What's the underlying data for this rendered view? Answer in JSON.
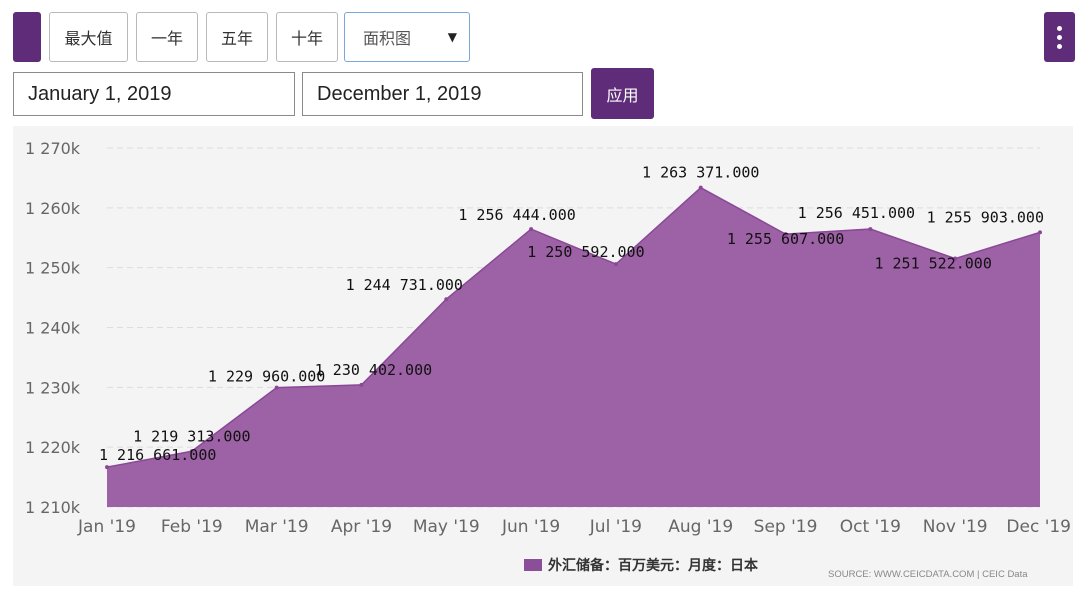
{
  "toolbar": {
    "range_buttons": [
      "最大值",
      "一年",
      "五年",
      "十年"
    ],
    "chart_type_select": "面积图",
    "date_from": "January 1, 2019",
    "date_to": "December 1, 2019",
    "apply_label": "应用"
  },
  "legend_label": "外汇储备：百万美元：月度：日本",
  "source_text": "SOURCE: WWW.CEICDATA.COM | CEIC Data",
  "colors": {
    "accent": "#5e2c78",
    "area": "#9b5fa4"
  },
  "chart_data": {
    "type": "area",
    "categories": [
      "Jan '19",
      "Feb '19",
      "Mar '19",
      "Apr '19",
      "May '19",
      "Jun '19",
      "Jul '19",
      "Aug '19",
      "Sep '19",
      "Oct '19",
      "Nov '19",
      "Dec '19"
    ],
    "values": [
      1216661,
      1219313,
      1229960,
      1230402,
      1244731,
      1256444,
      1250592,
      1263371,
      1255607,
      1256451,
      1251522,
      1255903
    ],
    "data_labels": [
      "1 216 661.000",
      "1 219 313.000",
      "1 229 960.000",
      "1 230 402.000",
      "1 244 731.000",
      "1 256 444.000",
      "1 250 592.000",
      "1 263 371.000",
      "1 255 607.000",
      "1 256 451.000",
      "1 251 522.000",
      "1 255 903.000"
    ],
    "series": [
      {
        "name": "外汇储备：百万美元：月度：日本"
      }
    ],
    "ylim": [
      1210000,
      1270000
    ],
    "yticks": [
      1210000,
      1220000,
      1230000,
      1240000,
      1250000,
      1260000,
      1270000
    ],
    "ytick_labels": [
      "1 210k",
      "1 220k",
      "1 230k",
      "1 240k",
      "1 250k",
      "1 260k",
      "1 270k"
    ],
    "grid": true,
    "legend_position": "bottom"
  }
}
